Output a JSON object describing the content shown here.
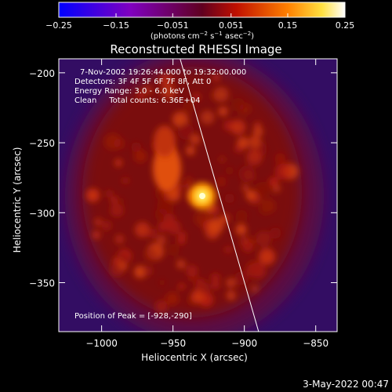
{
  "chart_data": {
    "type": "heatmap",
    "title": "Reconstructed RHESSI Image",
    "xlabel": "Heliocentric X (arcsec)",
    "ylabel": "Heliocentric Y (arcsec)",
    "xlim": [
      -1030,
      -835
    ],
    "ylim": [
      -385,
      -190
    ],
    "x_ticks": [
      {
        "value": -1000,
        "label": "−1000"
      },
      {
        "value": -950,
        "label": "−950"
      },
      {
        "value": -900,
        "label": "−900"
      },
      {
        "value": -850,
        "label": "−850"
      }
    ],
    "y_ticks": [
      {
        "value": -200,
        "label": "−200"
      },
      {
        "value": -250,
        "label": "−250"
      },
      {
        "value": -300,
        "label": "−300"
      },
      {
        "value": -350,
        "label": "−350"
      }
    ],
    "annotations": [
      "7-Nov-2002 19:26:44.000 to 19:32:00.000",
      "Detectors: 3F 4F 5F 6F 7F 8F, Att 0",
      "Energy Range: 3.0 - 6.0 keV",
      "Clean     Total counts: 6.36E+04"
    ],
    "peak_label": "Position of Peak = [-928,-290]",
    "peak": {
      "x": -928,
      "y": -290
    },
    "limb_line": [
      {
        "x": -945,
        "y": -190
      },
      {
        "x": -890,
        "y": -385
      }
    ],
    "colorbar": {
      "range": [
        -0.25,
        0.25
      ],
      "ticks": [
        {
          "value": -0.25,
          "label": "−0.25"
        },
        {
          "value": -0.15,
          "label": "−0.15"
        },
        {
          "value": -0.051,
          "label": "−0.051"
        },
        {
          "value": 0.051,
          "label": "0.051"
        },
        {
          "value": 0.15,
          "label": "0.15"
        },
        {
          "value": 0.25,
          "label": "0.25"
        }
      ]
    },
    "colorbar_units": {
      "pre": "(photons cm",
      "sup1": "−2",
      "mid1": " s",
      "sup2": "−1",
      "mid2": " asec",
      "sup3": "−2",
      "post": ")"
    }
  },
  "footer_timestamp": "3-May-2022 00:47"
}
